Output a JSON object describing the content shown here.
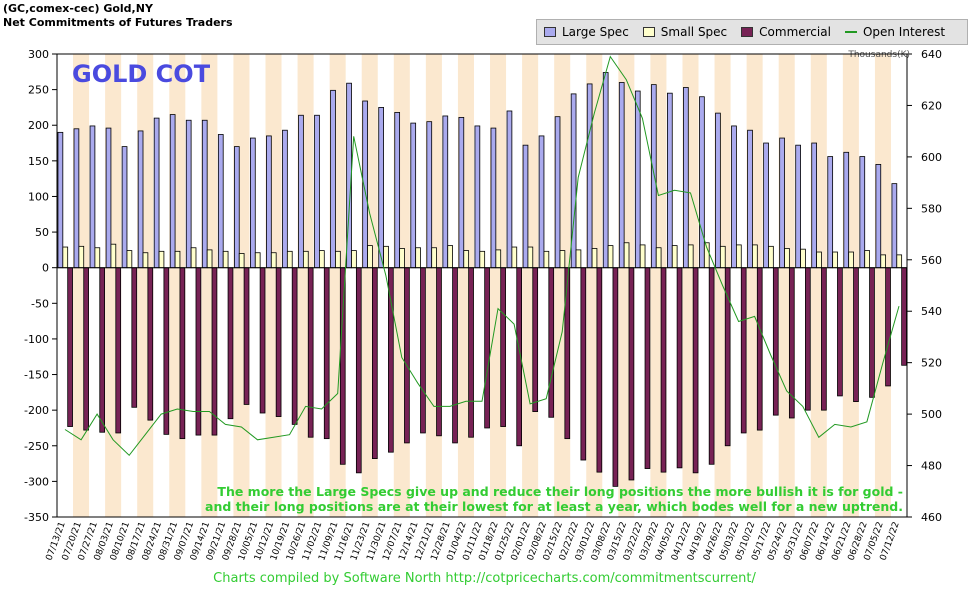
{
  "header": {
    "line1": "(GC,comex-cec) Gold,NY",
    "line2": "Net Commitments of Futures Traders"
  },
  "footer": {
    "text": "Charts compiled by Software North  http://cotpricecharts.com/commitmentscurrent/"
  },
  "chart_data": {
    "type": "bar",
    "title": "GOLD COT",
    "annotation": [
      "The more the Large Specs give up and reduce their long positions the more bullish it is for gold -",
      "and their long positions are at their lowest for at least a year, which bodes well for a new uptrend."
    ],
    "right_axis_label": "Thousands(K)",
    "left_axis": {
      "ylim": [
        -350,
        300
      ],
      "ticks": [
        300,
        250,
        200,
        150,
        100,
        50,
        0,
        -50,
        -100,
        -150,
        -200,
        -250,
        -300,
        -350
      ]
    },
    "right_axis": {
      "ylim": [
        460,
        640
      ],
      "ticks": [
        640,
        620,
        600,
        580,
        560,
        540,
        520,
        500,
        480,
        460
      ]
    },
    "categories": [
      "07/13/21",
      "07/20/21",
      "07/27/21",
      "08/03/21",
      "08/10/21",
      "08/17/21",
      "08/24/21",
      "08/31/21",
      "09/07/21",
      "09/14/21",
      "09/21/21",
      "09/28/21",
      "10/05/21",
      "10/12/21",
      "10/19/21",
      "10/26/21",
      "11/02/21",
      "11/09/21",
      "11/16/21",
      "11/23/21",
      "11/30/21",
      "12/07/21",
      "12/14/21",
      "12/21/21",
      "12/28/21",
      "01/04/22",
      "01/11/22",
      "01/18/22",
      "01/25/22",
      "02/01/22",
      "02/08/22",
      "02/15/22",
      "02/22/22",
      "03/01/22",
      "03/08/22",
      "03/15/22",
      "03/22/22",
      "03/29/22",
      "04/05/22",
      "04/12/22",
      "04/19/22",
      "04/26/22",
      "05/03/22",
      "05/10/22",
      "05/17/22",
      "05/24/22",
      "05/31/22",
      "06/07/22",
      "06/14/22",
      "06/21/22",
      "06/28/22",
      "07/05/22",
      "07/12/22"
    ],
    "series": [
      {
        "name": "Large Spec",
        "axis": "left",
        "color": "#aaaaee",
        "values": [
          190,
          195,
          199,
          196,
          170,
          192,
          210,
          215,
          207,
          207,
          187,
          170,
          182,
          185,
          193,
          214,
          214,
          249,
          259,
          234,
          225,
          218,
          203,
          205,
          213,
          211,
          199,
          196,
          220,
          172,
          185,
          212,
          244,
          258,
          274,
          260,
          248,
          257,
          245,
          253,
          240,
          217,
          199,
          193,
          175,
          182,
          172,
          175,
          156,
          162,
          156,
          145,
          118
        ]
      },
      {
        "name": "Small Spec",
        "axis": "left",
        "color": "#ffffcc",
        "values": [
          29,
          30,
          28,
          33,
          24,
          21,
          23,
          23,
          28,
          25,
          23,
          20,
          21,
          21,
          23,
          23,
          24,
          23,
          24,
          31,
          30,
          27,
          28,
          28,
          31,
          24,
          23,
          25,
          29,
          29,
          23,
          24,
          25,
          27,
          31,
          35,
          32,
          28,
          31,
          32,
          35,
          30,
          32,
          32,
          30,
          27,
          26,
          22,
          22,
          22,
          24,
          18,
          18
        ]
      },
      {
        "name": "Commercial",
        "axis": "left",
        "color": "#772255",
        "values": [
          -223,
          -228,
          -231,
          -232,
          -196,
          -214,
          -234,
          -240,
          -235,
          -235,
          -212,
          -192,
          -204,
          -209,
          -220,
          -238,
          -240,
          -276,
          -288,
          -268,
          -259,
          -246,
          -232,
          -236,
          -246,
          -238,
          -225,
          -223,
          -250,
          -202,
          -210,
          -240,
          -270,
          -287,
          -307,
          -298,
          -282,
          -287,
          -281,
          -288,
          -276,
          -250,
          -232,
          -228,
          -207,
          -211,
          -200,
          -200,
          -180,
          -188,
          -182,
          -166,
          -137
        ]
      },
      {
        "name": "Open Interest",
        "axis": "right",
        "color": "#229922",
        "values": [
          494,
          490,
          500,
          490,
          484,
          492,
          500,
          502,
          501,
          501,
          496,
          495,
          490,
          491,
          492,
          503,
          502,
          508,
          608,
          578,
          554,
          522,
          512,
          503,
          503,
          505,
          505,
          541,
          535,
          504,
          506,
          532,
          592,
          617,
          639,
          630,
          615,
          585,
          587,
          586,
          565,
          550,
          536,
          538,
          523,
          509,
          503,
          491,
          496,
          495,
          497,
          520,
          542
        ]
      }
    ]
  }
}
